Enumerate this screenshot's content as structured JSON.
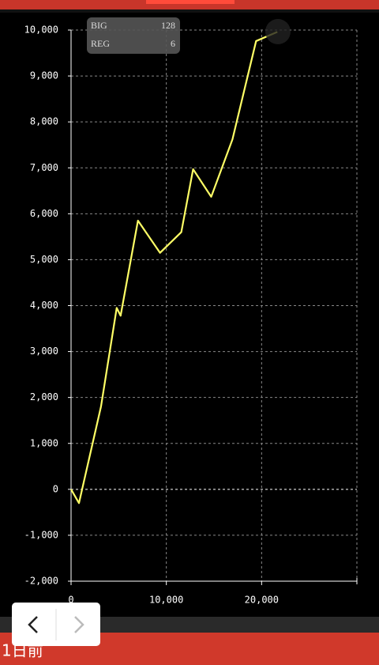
{
  "chart_data": {
    "type": "line",
    "x": [
      0,
      830,
      3140,
      4790,
      5200,
      7020,
      9340,
      11570,
      12810,
      14710,
      16940,
      19420,
      21650
    ],
    "values": [
      0,
      -300,
      1800,
      3950,
      3780,
      5850,
      5150,
      5600,
      6970,
      6370,
      7620,
      9760,
      9960
    ],
    "color": "#ffff66",
    "xlim": [
      0,
      30000
    ],
    "xticks": [
      0,
      {
        "value": 10000,
        "label": "10,000"
      },
      {
        "value": 20000,
        "label": "20,000"
      }
    ],
    "ylim": [
      -2000,
      10000
    ],
    "yticks": [
      {
        "value": -2000,
        "label": "-2,000"
      },
      {
        "value": -1000,
        "label": "-1,000"
      },
      0,
      {
        "value": 1000,
        "label": "1,000"
      },
      {
        "value": 2000,
        "label": "2,000"
      },
      {
        "value": 3000,
        "label": "3,000"
      },
      {
        "value": 4000,
        "label": "4,000"
      },
      {
        "value": 5000,
        "label": "5,000"
      },
      {
        "value": 6000,
        "label": "6,000"
      },
      {
        "value": 7000,
        "label": "7,000"
      },
      {
        "value": 8000,
        "label": "8,000"
      },
      {
        "value": 9000,
        "label": "9,000"
      },
      {
        "value": 10000,
        "label": "10,000"
      }
    ],
    "grid": true
  },
  "stats": [
    {
      "label": "BIG",
      "value": 128
    },
    {
      "label": "REG",
      "value": 6
    }
  ],
  "nav": {
    "label": "1日前"
  }
}
